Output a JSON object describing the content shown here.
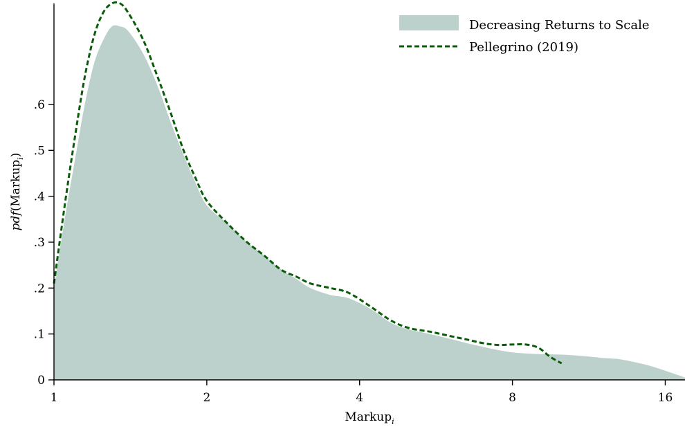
{
  "chart_data": {
    "type": "area",
    "xlabel": "Markup",
    "xlabel_subscript": "i",
    "ylabel_italic": "pdf",
    "ylabel_open": "(Markup",
    "ylabel_subscript": "i",
    "ylabel_close": ")",
    "x_scale": "log2",
    "xlim": [
      1,
      17.5
    ],
    "ylim": [
      0,
      0.82
    ],
    "x_ticks": [
      1,
      2,
      4,
      8,
      16
    ],
    "x_tick_labels": [
      "1",
      "2",
      "4",
      "8",
      "16"
    ],
    "y_ticks": [
      0,
      0.1,
      0.2,
      0.3,
      0.4,
      0.5,
      0.6
    ],
    "y_tick_labels": [
      "0",
      ".1",
      ".2",
      ".3",
      ".4",
      ".5",
      ".6"
    ],
    "grid": false,
    "legend_position": "top-right",
    "series": [
      {
        "name": "Decreasing Returns to Scale",
        "style": "filled-area",
        "color": "#bcd1cb",
        "points": [
          [
            1.0,
            0.2
          ],
          [
            1.05,
            0.35
          ],
          [
            1.1,
            0.48
          ],
          [
            1.15,
            0.6
          ],
          [
            1.2,
            0.69
          ],
          [
            1.25,
            0.74
          ],
          [
            1.3,
            0.77
          ],
          [
            1.35,
            0.77
          ],
          [
            1.4,
            0.76
          ],
          [
            1.5,
            0.71
          ],
          [
            1.6,
            0.64
          ],
          [
            1.7,
            0.56
          ],
          [
            1.8,
            0.49
          ],
          [
            1.9,
            0.43
          ],
          [
            2.0,
            0.38
          ],
          [
            2.2,
            0.34
          ],
          [
            2.4,
            0.3
          ],
          [
            2.6,
            0.27
          ],
          [
            2.8,
            0.24
          ],
          [
            3.0,
            0.22
          ],
          [
            3.2,
            0.2
          ],
          [
            3.5,
            0.185
          ],
          [
            3.8,
            0.178
          ],
          [
            4.2,
            0.155
          ],
          [
            4.6,
            0.125
          ],
          [
            5.0,
            0.11
          ],
          [
            5.5,
            0.1
          ],
          [
            6.0,
            0.09
          ],
          [
            6.5,
            0.08
          ],
          [
            7.0,
            0.072
          ],
          [
            7.5,
            0.065
          ],
          [
            8.0,
            0.06
          ],
          [
            9.0,
            0.056
          ],
          [
            10.0,
            0.055
          ],
          [
            11.0,
            0.052
          ],
          [
            12.0,
            0.048
          ],
          [
            13.0,
            0.045
          ],
          [
            14.0,
            0.038
          ],
          [
            15.0,
            0.03
          ],
          [
            16.0,
            0.02
          ],
          [
            17.0,
            0.01
          ],
          [
            17.5,
            0.005
          ]
        ]
      },
      {
        "name": "Pellegrino (2019)",
        "style": "dashed-line",
        "color": "#0a5c0a",
        "points": [
          [
            1.0,
            0.21
          ],
          [
            1.05,
            0.38
          ],
          [
            1.1,
            0.53
          ],
          [
            1.15,
            0.66
          ],
          [
            1.2,
            0.75
          ],
          [
            1.25,
            0.8
          ],
          [
            1.3,
            0.82
          ],
          [
            1.35,
            0.82
          ],
          [
            1.4,
            0.8
          ],
          [
            1.5,
            0.74
          ],
          [
            1.6,
            0.66
          ],
          [
            1.7,
            0.58
          ],
          [
            1.8,
            0.5
          ],
          [
            1.9,
            0.44
          ],
          [
            2.0,
            0.39
          ],
          [
            2.2,
            0.34
          ],
          [
            2.4,
            0.3
          ],
          [
            2.6,
            0.27
          ],
          [
            2.8,
            0.24
          ],
          [
            3.0,
            0.225
          ],
          [
            3.2,
            0.21
          ],
          [
            3.5,
            0.2
          ],
          [
            3.8,
            0.19
          ],
          [
            4.2,
            0.16
          ],
          [
            4.6,
            0.13
          ],
          [
            5.0,
            0.113
          ],
          [
            5.5,
            0.105
          ],
          [
            6.0,
            0.096
          ],
          [
            6.5,
            0.088
          ],
          [
            7.0,
            0.08
          ],
          [
            7.5,
            0.076
          ],
          [
            8.0,
            0.077
          ],
          [
            8.5,
            0.077
          ],
          [
            9.0,
            0.07
          ],
          [
            9.5,
            0.05
          ],
          [
            10.0,
            0.036
          ]
        ]
      }
    ]
  }
}
